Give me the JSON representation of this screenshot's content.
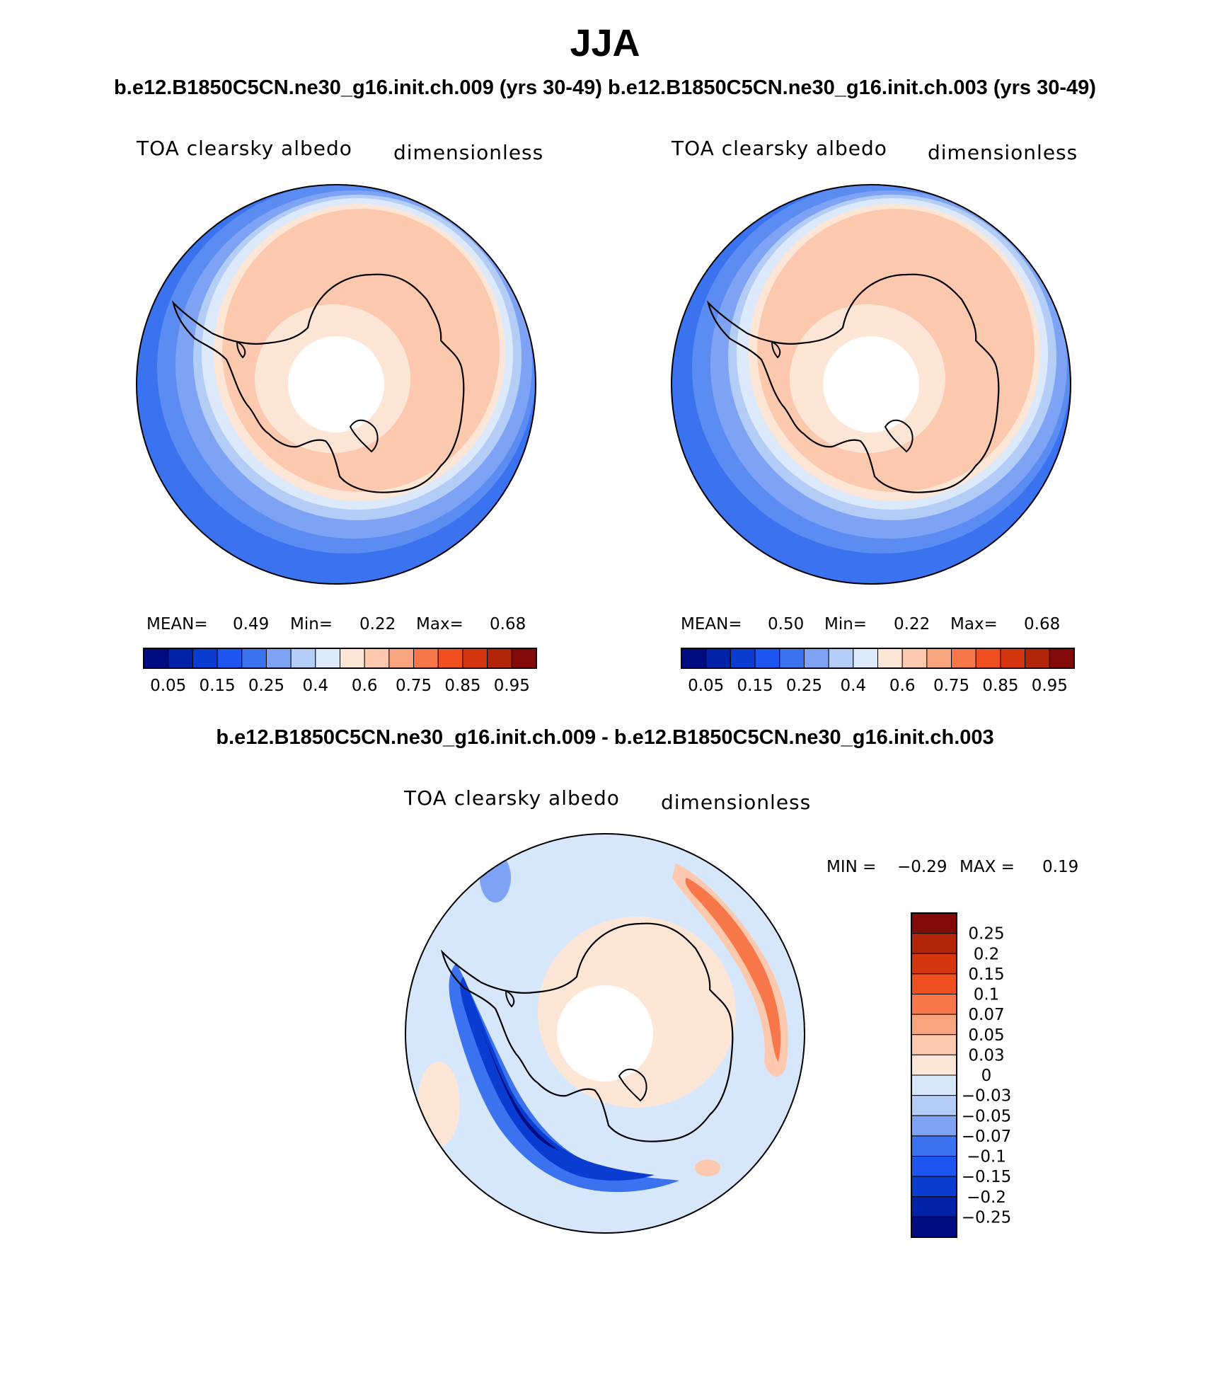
{
  "figure": {
    "title": "JJA",
    "top_subtitle": "b.e12.B1850C5CN.ne30_g16.init.ch.009 (yrs 30-49) b.e12.B1850C5CN.ne30_g16.init.ch.003 (yrs 30-49)",
    "diff_subtitle": "b.e12.B1850C5CN.ne30_g16.init.ch.009 - b.e12.B1850C5CN.ne30_g16.init.ch.003"
  },
  "panels": [
    {
      "variable": "TOA clearsky albedo",
      "units": "dimensionless",
      "stats": {
        "mean_label": "MEAN=",
        "mean": "0.49",
        "min_label": "Min=",
        "min": "0.22",
        "max_label": "Max=",
        "max": "0.68"
      }
    },
    {
      "variable": "TOA clearsky albedo",
      "units": "dimensionless",
      "stats": {
        "mean_label": "MEAN=",
        "mean": "0.50",
        "min_label": "Min=",
        "min": "0.22",
        "max_label": "Max=",
        "max": "0.68"
      }
    },
    {
      "variable": "TOA clearsky albedo",
      "units": "dimensionless",
      "stats": {
        "min_label": "MIN =",
        "min": "−0.29",
        "max_label": "MAX =",
        "max": "0.19"
      }
    }
  ],
  "colorbars": {
    "absolute": {
      "colors": [
        "#000c80",
        "#0022a8",
        "#0a3cd2",
        "#1d55f0",
        "#3a72f0",
        "#7ea3f5",
        "#b3cdf7",
        "#dce9fb",
        "#fde6d6",
        "#fcc8ae",
        "#f9a580",
        "#f7774a",
        "#f0501f",
        "#d5360f",
        "#b22509",
        "#820a0a"
      ],
      "tick_labels": [
        "0.05",
        "0.15",
        "0.25",
        "0.4",
        "0.6",
        "0.75",
        "0.85",
        "0.95"
      ]
    },
    "difference": {
      "colors": [
        "#000c80",
        "#0022a8",
        "#0a3cd2",
        "#1d55f0",
        "#3a72f0",
        "#7ea3f5",
        "#b3cdf7",
        "#d7e7fb",
        "#fde6d6",
        "#fcc8ae",
        "#f9a580",
        "#f7774a",
        "#f0501f",
        "#d5360f",
        "#b22509",
        "#820a0a"
      ],
      "tick_labels": [
        "−0.25",
        "−0.2",
        "−0.15",
        "−0.1",
        "−0.07",
        "−0.05",
        "−0.03",
        "0",
        "0.03",
        "0.05",
        "0.07",
        "0.1",
        "0.15",
        "0.2",
        "0.25"
      ]
    }
  }
}
